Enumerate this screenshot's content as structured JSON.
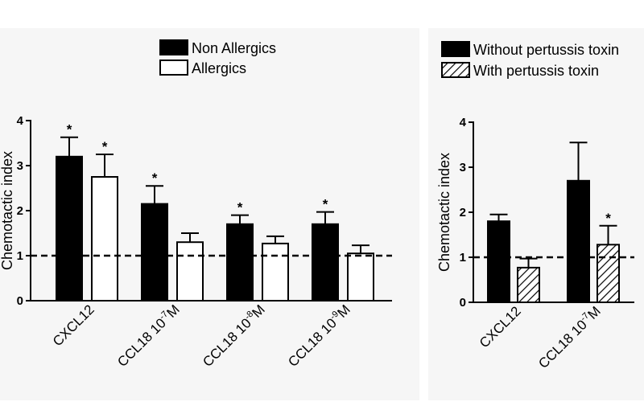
{
  "colors": {
    "filled": "#000000",
    "open": "#ffffff",
    "axis": "#000000",
    "panel": "#f6f6f6"
  },
  "chart_data": [
    {
      "type": "bar",
      "ylabel": "Chemotactic index",
      "ylim": [
        0,
        4
      ],
      "yticks": [
        "0",
        "1",
        "2",
        "3",
        "4"
      ],
      "reference_line": 1,
      "categories": [
        {
          "base": "CXCL12",
          "sup": "",
          "unit": ""
        },
        {
          "base": "CCL18 10",
          "sup": "-7",
          "unit": "M"
        },
        {
          "base": "CCL18 10",
          "sup": "-8",
          "unit": "M"
        },
        {
          "base": "CCL18 10",
          "sup": "-9",
          "unit": "M"
        }
      ],
      "series": [
        {
          "name": "Non Allergics",
          "fill": "solid",
          "values": [
            3.2,
            2.15,
            1.7,
            1.7
          ],
          "errors": [
            0.43,
            0.4,
            0.2,
            0.27
          ],
          "significant": [
            "*",
            "*",
            "*",
            "*"
          ]
        },
        {
          "name": "Allergics",
          "fill": "open",
          "values": [
            2.75,
            1.3,
            1.27,
            1.05
          ],
          "errors": [
            0.5,
            0.2,
            0.16,
            0.18
          ],
          "significant": [
            "*",
            "",
            "",
            ""
          ]
        }
      ],
      "legend": "top-center"
    },
    {
      "type": "bar",
      "ylabel": "Chemotactic index",
      "ylim": [
        0,
        4
      ],
      "yticks": [
        "0",
        "1",
        "2",
        "3",
        "4"
      ],
      "reference_line": 1,
      "categories": [
        {
          "base": "CXCL12",
          "sup": "",
          "unit": ""
        },
        {
          "base": "CCL18 10",
          "sup": "-7",
          "unit": "M"
        }
      ],
      "series": [
        {
          "name": "Without pertussis toxin",
          "fill": "solid",
          "values": [
            1.8,
            2.7
          ],
          "errors": [
            0.15,
            0.85
          ],
          "significant": [
            "",
            ""
          ]
        },
        {
          "name": "With pertussis toxin",
          "fill": "hatched",
          "values": [
            0.77,
            1.28
          ],
          "errors": [
            0.2,
            0.42
          ],
          "significant": [
            "",
            "*"
          ]
        }
      ],
      "legend": "top-left"
    }
  ]
}
